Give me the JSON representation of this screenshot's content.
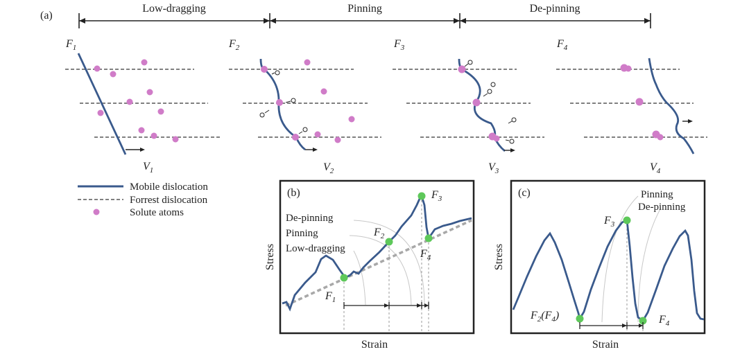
{
  "figure": {
    "panel_a": {
      "label": "(a)",
      "stages": [
        "Low-dragging",
        "Pinning",
        "De-pinning"
      ],
      "states": [
        {
          "force": "F",
          "force_sub": "1",
          "velocity": "V",
          "velocity_sub": "1"
        },
        {
          "force": "F",
          "force_sub": "2",
          "velocity": "V",
          "velocity_sub": "2"
        },
        {
          "force": "F",
          "force_sub": "3",
          "velocity": "V",
          "velocity_sub": "3"
        },
        {
          "force": "F",
          "force_sub": "4",
          "velocity": "V",
          "velocity_sub": "4"
        }
      ]
    },
    "legend": {
      "items": [
        {
          "label": "Mobile dislocation",
          "type": "solid-line"
        },
        {
          "label": "Forrest dislocation",
          "type": "dashed-line"
        },
        {
          "label": "Solute atoms",
          "type": "dot"
        }
      ]
    },
    "panel_b": {
      "label": "(b)",
      "xlabel": "Strain",
      "ylabel": "Stress",
      "annotations": [
        "De-pinning",
        "Pinning",
        "Low-dragging"
      ],
      "points": [
        {
          "name": "F",
          "sub": "1"
        },
        {
          "name": "F",
          "sub": "2"
        },
        {
          "name": "F",
          "sub": "3"
        },
        {
          "name": "F",
          "sub": "4"
        }
      ]
    },
    "panel_c": {
      "label": "(c)",
      "xlabel": "Strain",
      "ylabel": "Stress",
      "annotations": [
        "Pinning",
        "De-pinning"
      ],
      "points": [
        {
          "name": "F",
          "sub": "2",
          "suffix": "(F",
          "suffix_sub": "4",
          "close": ")"
        },
        {
          "name": "F",
          "sub": "3"
        },
        {
          "name": "F",
          "sub": "4"
        }
      ]
    },
    "colors": {
      "mobile_dislocation": "#3a5a8c",
      "forest_dislocation": "#808080",
      "solute_atom": "#d07cc8",
      "marker": "#5ec85a",
      "text": "#222222"
    }
  }
}
